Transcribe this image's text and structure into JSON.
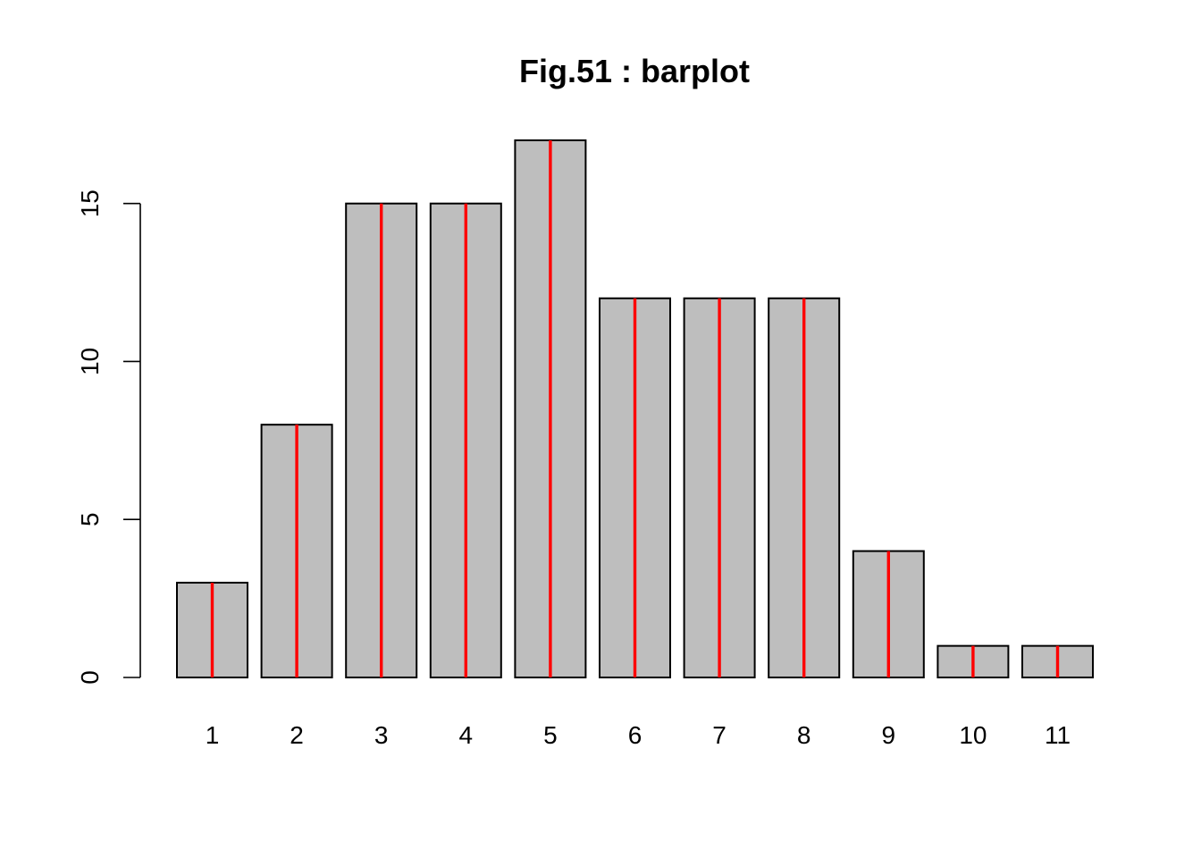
{
  "chart_data": {
    "type": "bar",
    "title": "Fig.51 : barplot",
    "xlabel": "",
    "ylabel": "",
    "categories": [
      "1",
      "2",
      "3",
      "4",
      "5",
      "6",
      "7",
      "8",
      "9",
      "10",
      "11"
    ],
    "values": [
      3,
      8,
      15,
      15,
      17,
      12,
      12,
      12,
      4,
      1,
      1
    ],
    "ylim": [
      0,
      17
    ],
    "yticks": [
      0,
      5,
      10,
      15
    ],
    "ytick_labels": [
      "0",
      "5",
      "10",
      "15"
    ],
    "grid": false,
    "legend": "none",
    "bar_fill": "#bebebe",
    "bar_border": "#000000",
    "overlay_line_color": "#ff0000"
  }
}
